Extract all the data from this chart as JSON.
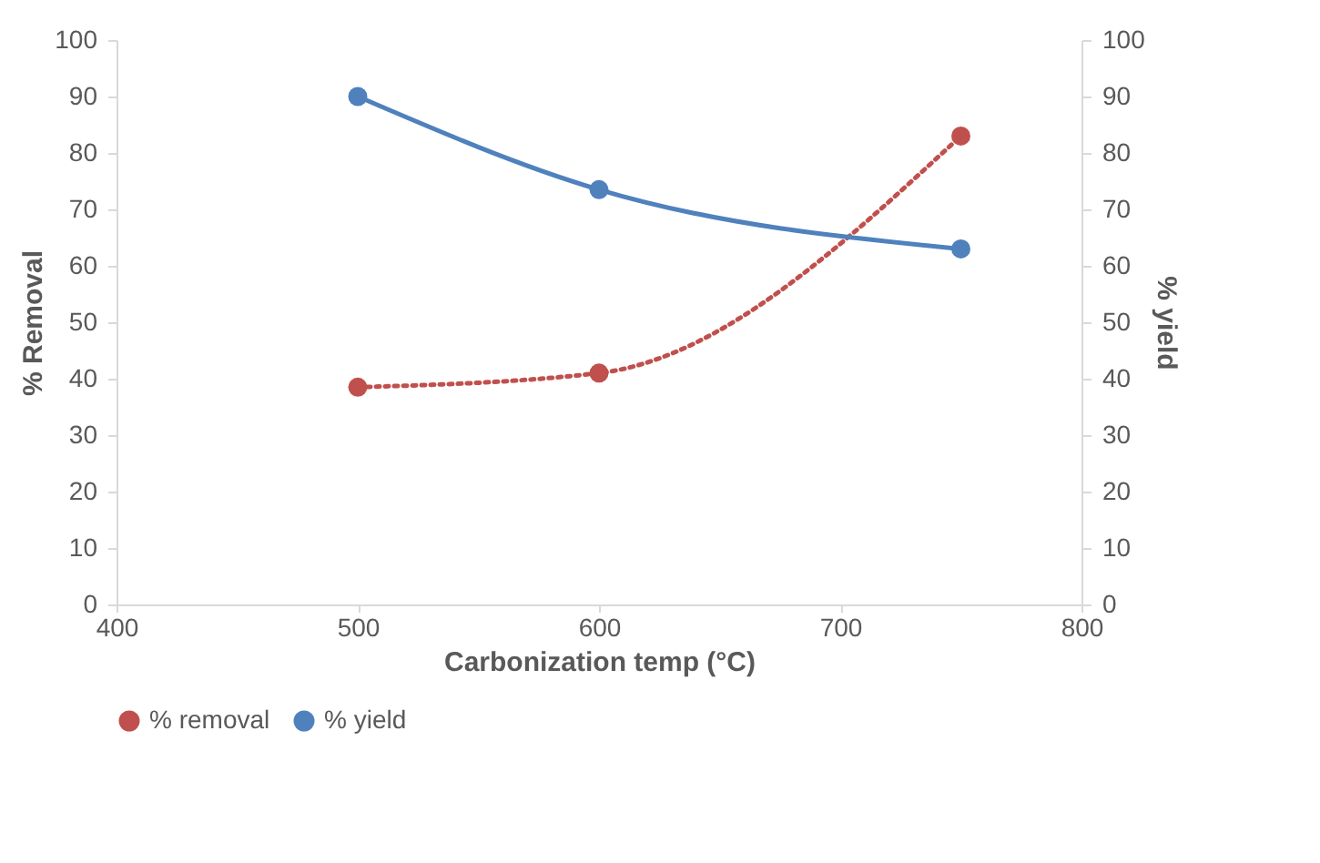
{
  "chart_data": {
    "type": "line",
    "xlabel": "Carbonization temp (°C)",
    "ylabel": "% Removal",
    "y2label": "% yield",
    "x": [
      500,
      600,
      750
    ],
    "series": [
      {
        "name": "% removal",
        "color": "#c0504d",
        "values": [
          38.5,
          41,
          83
        ],
        "line_style": "dotted"
      },
      {
        "name": "% yield",
        "color": "#4f81bd",
        "values": [
          90,
          73.5,
          63
        ],
        "axis": "y2",
        "line_style": "solid"
      }
    ],
    "xlim": [
      400,
      800
    ],
    "xticks": [
      400,
      500,
      600,
      700,
      800
    ],
    "ylim": [
      0,
      100
    ],
    "yticks": [
      0,
      10,
      20,
      30,
      40,
      50,
      60,
      70,
      80,
      90,
      100
    ],
    "y2lim": [
      0,
      100
    ],
    "y2ticks": [
      0,
      10,
      20,
      30,
      40,
      50,
      60,
      70,
      80,
      90,
      100
    ],
    "marker": "circle",
    "grid": false,
    "legend": "bottom"
  }
}
